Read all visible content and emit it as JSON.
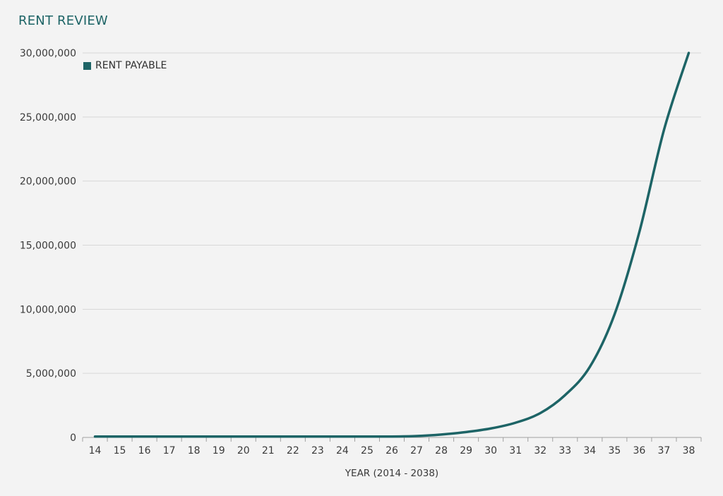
{
  "colors": {
    "series": "#1d6466",
    "grid": "#d7d7d7",
    "axis": "#a0a0a0"
  },
  "chart_data": {
    "type": "line",
    "title": "RENT REVIEW",
    "xlabel": "YEAR (2014 - 2038)",
    "ylabel": "",
    "ylim": [
      0,
      30000000
    ],
    "yticks": [
      0,
      5000000,
      10000000,
      15000000,
      20000000,
      25000000,
      30000000
    ],
    "ytick_labels": [
      "0",
      "5,000,000",
      "10,000,000",
      "15,000,000",
      "20,000,000",
      "25,000,000",
      "30,000,000"
    ],
    "grid": true,
    "legend_position": "top-left",
    "categories": [
      "14",
      "15",
      "16",
      "17",
      "18",
      "19",
      "20",
      "21",
      "22",
      "23",
      "24",
      "25",
      "26",
      "27",
      "28",
      "29",
      "30",
      "31",
      "32",
      "33",
      "34",
      "35",
      "36",
      "37",
      "38"
    ],
    "series": [
      {
        "name": "RENT PAYABLE",
        "values": [
          70000,
          70000,
          70000,
          70000,
          70000,
          70000,
          70000,
          70000,
          70000,
          70000,
          70000,
          70000,
          70000,
          110000,
          230000,
          420000,
          700000,
          1150000,
          1900000,
          3300000,
          5500000,
          9600000,
          16000000,
          24000000,
          30000000
        ]
      }
    ]
  }
}
